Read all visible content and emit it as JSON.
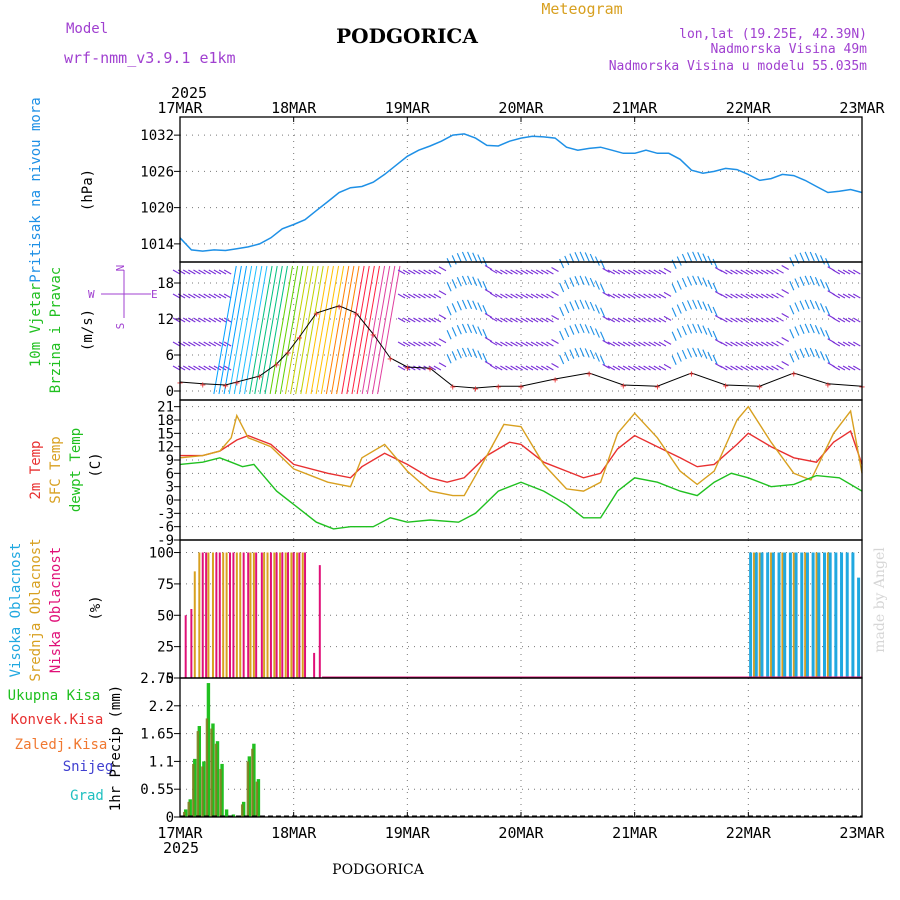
{
  "header": {
    "model_label": "Model",
    "model_name": "wrf-nmm_v3.9.1  e1km",
    "city": "PODGORICA",
    "meteogram_label": "Meteogram",
    "lonlat": "lon,lat (19.25E, 42.39N)",
    "elevation": "Nadmorska Visina 49m",
    "model_elevation": "Nadmorska Visina u modelu 55.035m",
    "footer_city": "PODGORICA",
    "credit": "made by Angel"
  },
  "colors": {
    "purple": "#a040d0",
    "pressure": "#1e90e6",
    "temp2m": "#e83030",
    "sfc": "#d8a020",
    "dewpt": "#20c020",
    "high_cloud": "#20a8e0",
    "mid_cloud": "#d8a020",
    "low_cloud": "#e01078",
    "total_precip": "#20c020",
    "conv_precip": "#e83030",
    "frozen": "#f07830",
    "snow": "#4040d0",
    "hail": "#20c0c0"
  },
  "chart_data": {
    "type": "line",
    "time_axis": {
      "year": "2025",
      "ticks": [
        "17MAR",
        "18MAR",
        "19MAR",
        "20MAR",
        "21MAR",
        "22MAR",
        "23MAR"
      ]
    },
    "panels": [
      {
        "id": "pressure",
        "ylabel_main": "Pritisak na nivou mora",
        "unit": "(hPa)",
        "yticks": [
          1014,
          1020,
          1026,
          1032
        ],
        "ylim": [
          1011,
          1035
        ],
        "series": [
          {
            "name": "Pritisak na nivou mora",
            "x": [
              0,
              0.1,
              0.2,
              0.3,
              0.4,
              0.5,
              0.6,
              0.7,
              0.8,
              0.9,
              1.0,
              1.1,
              1.2,
              1.3,
              1.4,
              1.5,
              1.6,
              1.7,
              1.8,
              1.9,
              2.0,
              2.1,
              2.2,
              2.3,
              2.4,
              2.5,
              2.6,
              2.7,
              2.8,
              2.9,
              3.0,
              3.1,
              3.2,
              3.3,
              3.4,
              3.5,
              3.6,
              3.7,
              3.8,
              3.9,
              4.0,
              4.1,
              4.2,
              4.3,
              4.4,
              4.5,
              4.6,
              4.7,
              4.8,
              4.9,
              5.0,
              5.1,
              5.2,
              5.3,
              5.4,
              5.5,
              5.6,
              5.7,
              5.8,
              5.9,
              6.0
            ],
            "y": [
              1015,
              1013,
              1012.8,
              1013,
              1012.9,
              1013.2,
              1013.5,
              1014,
              1015,
              1016.5,
              1017.2,
              1018,
              1019.5,
              1021,
              1022.5,
              1023.3,
              1023.5,
              1024.2,
              1025.5,
              1027,
              1028.5,
              1029.5,
              1030.2,
              1031,
              1032,
              1032.2,
              1031.5,
              1030.3,
              1030.2,
              1031,
              1031.5,
              1031.8,
              1031.7,
              1031.5,
              1030,
              1029.5,
              1029.8,
              1030,
              1029.5,
              1029,
              1029,
              1029.5,
              1029,
              1029,
              1028,
              1026.2,
              1025.7,
              1026,
              1026.5,
              1026.3,
              1025.5,
              1024.5,
              1024.8,
              1025.5,
              1025.3,
              1024.5,
              1023.5,
              1022.5,
              1022.7,
              1023,
              1022.5
            ]
          }
        ]
      },
      {
        "id": "wind",
        "ylabel_main": "10m Vjetar",
        "ylabel_sub": "Brzina i Pravac",
        "unit": "(m/s)",
        "compass": {
          "n": "N",
          "s": "S",
          "e": "E",
          "w": "W"
        },
        "yticks": [
          0,
          6,
          12,
          18
        ],
        "ylim": [
          -1.5,
          21.5
        ],
        "series": [
          {
            "name": "Brzina",
            "x": [
              0,
              0.2,
              0.4,
              0.5,
              0.7,
              0.85,
              0.95,
              1.05,
              1.2,
              1.4,
              1.55,
              1.7,
              1.85,
              2.0,
              2.2,
              2.4,
              2.6,
              2.8,
              3.0,
              3.3,
              3.6,
              3.9,
              4.2,
              4.5,
              4.8,
              5.1,
              5.4,
              5.7,
              6.0
            ],
            "y": [
              1.5,
              1.2,
              1.0,
              1.5,
              2.5,
              4.5,
              6.5,
              9.0,
              13.0,
              14.2,
              13.0,
              9.5,
              5.5,
              4.0,
              3.8,
              0.8,
              0.5,
              0.8,
              0.8,
              2.0,
              3.0,
              1.0,
              0.8,
              3.0,
              1.0,
              0.8,
              3.0,
              1.2,
              0.8
            ]
          }
        ]
      },
      {
        "id": "temperature",
        "ylabel_lines": [
          "2m Temp",
          "SFC Temp",
          "dewpt Temp"
        ],
        "unit": "(C)",
        "yticks": [
          -9,
          -6,
          -3,
          0,
          3,
          6,
          9,
          12,
          15,
          18,
          21
        ],
        "ylim": [
          -9,
          22.5
        ],
        "series": [
          {
            "name": "2m Temp",
            "x": [
              0,
              0.2,
              0.35,
              0.5,
              0.6,
              0.7,
              0.8,
              1.0,
              1.3,
              1.5,
              1.6,
              1.8,
              2.0,
              2.2,
              2.35,
              2.5,
              2.7,
              2.9,
              3.0,
              3.2,
              3.4,
              3.55,
              3.7,
              3.85,
              4.0,
              4.2,
              4.4,
              4.55,
              4.7,
              4.9,
              5.0,
              5.2,
              5.4,
              5.6,
              5.75,
              5.9,
              6.0
            ],
            "y": [
              10,
              10,
              11,
              13.5,
              14.5,
              13.5,
              12.5,
              8,
              6,
              5,
              7.5,
              10.5,
              8,
              5,
              4,
              5,
              10,
              13,
              12.5,
              8.5,
              6.5,
              5,
              6,
              11.5,
              14.5,
              12,
              9.5,
              7.5,
              8,
              12.5,
              15,
              12,
              9.5,
              8.5,
              13,
              15.5,
              8
            ]
          },
          {
            "name": "SFC Temp",
            "x": [
              0,
              0.2,
              0.35,
              0.45,
              0.5,
              0.6,
              0.7,
              0.8,
              1.0,
              1.3,
              1.5,
              1.6,
              1.8,
              2.0,
              2.2,
              2.4,
              2.5,
              2.7,
              2.85,
              3.0,
              3.2,
              3.4,
              3.55,
              3.7,
              3.85,
              4.0,
              4.2,
              4.4,
              4.55,
              4.7,
              4.9,
              5.0,
              5.2,
              5.4,
              5.55,
              5.75,
              5.9,
              6.0
            ],
            "y": [
              9.5,
              10,
              11,
              14,
              19,
              14,
              13,
              12,
              7,
              4,
              3,
              9.5,
              12.5,
              6.5,
              2,
              1,
              1,
              10,
              17,
              16.5,
              8,
              2.5,
              2,
              4,
              15,
              19.5,
              14,
              6.5,
              3.5,
              6.5,
              18,
              21,
              13,
              6,
              4.5,
              15,
              20,
              6
            ]
          },
          {
            "name": "dewpt Temp",
            "x": [
              0,
              0.2,
              0.35,
              0.45,
              0.55,
              0.65,
              0.75,
              0.85,
              1.0,
              1.2,
              1.35,
              1.5,
              1.7,
              1.85,
              2.0,
              2.2,
              2.45,
              2.6,
              2.8,
              3.0,
              3.2,
              3.4,
              3.55,
              3.7,
              3.85,
              4.0,
              4.2,
              4.4,
              4.55,
              4.7,
              4.85,
              5.0,
              5.2,
              5.4,
              5.6,
              5.8,
              6.0
            ],
            "y": [
              8,
              8.5,
              9.5,
              8.5,
              7.5,
              8,
              5,
              2,
              -1,
              -5,
              -6.5,
              -6,
              -6,
              -4,
              -5,
              -4.5,
              -5,
              -3,
              2,
              4,
              2,
              -1,
              -4,
              -4,
              2,
              5,
              4,
              2,
              1,
              4,
              6,
              5,
              3,
              3.5,
              5.5,
              5,
              2
            ]
          }
        ]
      },
      {
        "id": "cloud",
        "ylabel_lines": [
          "Visoka Oblacnost",
          "Srednja Oblacnost",
          "Niska Oblacnost"
        ],
        "unit": "(%)",
        "yticks": [
          0,
          25,
          50,
          75,
          100
        ],
        "ylim": [
          0,
          110
        ],
        "series": [
          {
            "name": "Niska Oblacnost",
            "x": [
              0.05,
              0.1,
              0.2,
              0.23,
              0.32,
              0.35,
              0.44,
              0.47,
              0.56,
              0.6,
              0.67,
              0.72,
              0.8,
              0.85,
              0.9,
              0.95,
              1.0,
              1.05,
              1.1,
              1.18,
              1.23
            ],
            "y": [
              50,
              55,
              100,
              100,
              100,
              100,
              100,
              100,
              100,
              100,
              100,
              100,
              100,
              100,
              100,
              100,
              100,
              100,
              100,
              20,
              90
            ]
          },
          {
            "name": "Srednja Oblacnost",
            "x": [
              0.13,
              0.17,
              0.25,
              0.29,
              0.38,
              0.41,
              0.5,
              0.53,
              0.62,
              0.65,
              0.74,
              0.77,
              0.83,
              0.88,
              0.93,
              0.98,
              1.03,
              1.08,
              5.05,
              5.1,
              5.2,
              5.3,
              5.4,
              5.5,
              5.6,
              5.7
            ],
            "y": [
              85,
              100,
              100,
              100,
              100,
              100,
              100,
              100,
              100,
              100,
              100,
              100,
              100,
              100,
              100,
              100,
              100,
              100,
              100,
              100,
              100,
              100,
              100,
              100,
              100,
              100
            ]
          },
          {
            "name": "Visoka Oblacnost",
            "x": [
              5.02,
              5.07,
              5.12,
              5.17,
              5.22,
              5.27,
              5.32,
              5.37,
              5.42,
              5.47,
              5.52,
              5.57,
              5.62,
              5.67,
              5.72,
              5.77,
              5.82,
              5.87,
              5.92,
              5.97
            ],
            "y": [
              100,
              100,
              100,
              100,
              100,
              100,
              100,
              100,
              100,
              100,
              100,
              100,
              100,
              100,
              100,
              100,
              100,
              100,
              100,
              80
            ]
          }
        ]
      },
      {
        "id": "precip",
        "ylabel_lines": [
          "Ukupna Kisa",
          "Konvek.Kisa",
          "Zaledj.Kisa",
          "Snijeg",
          "Grad"
        ],
        "unit": "1hr Precip (mm)",
        "yticks": [
          0,
          0.55,
          1.1,
          1.65,
          2.2,
          2.75
        ],
        "ytick_labels": [
          "0",
          "0.55",
          "1.1",
          "1.65",
          "2.2",
          "2.75"
        ],
        "ylim": [
          0,
          2.75
        ],
        "series": [
          {
            "name": "Ukupna Kisa",
            "x": [
              0.05,
              0.09,
              0.13,
              0.17,
              0.21,
              0.25,
              0.29,
              0.33,
              0.37,
              0.41,
              0.47,
              0.56,
              0.61,
              0.65,
              0.69
            ],
            "y": [
              0.15,
              0.35,
              1.15,
              1.8,
              1.1,
              2.65,
              1.85,
              1.5,
              1.05,
              0.15,
              0.05,
              0.3,
              1.2,
              1.45,
              0.75
            ]
          },
          {
            "name": "Konvek.Kisa",
            "x": [
              0.05,
              0.09,
              0.13,
              0.17,
              0.21,
              0.25,
              0.29,
              0.33,
              0.37,
              0.56,
              0.61,
              0.65,
              0.69
            ],
            "y": [
              0.1,
              0.3,
              1.05,
              1.7,
              1.0,
              1.95,
              1.75,
              1.45,
              0.95,
              0.25,
              1.1,
              1.35,
              0.7
            ]
          }
        ]
      }
    ]
  }
}
